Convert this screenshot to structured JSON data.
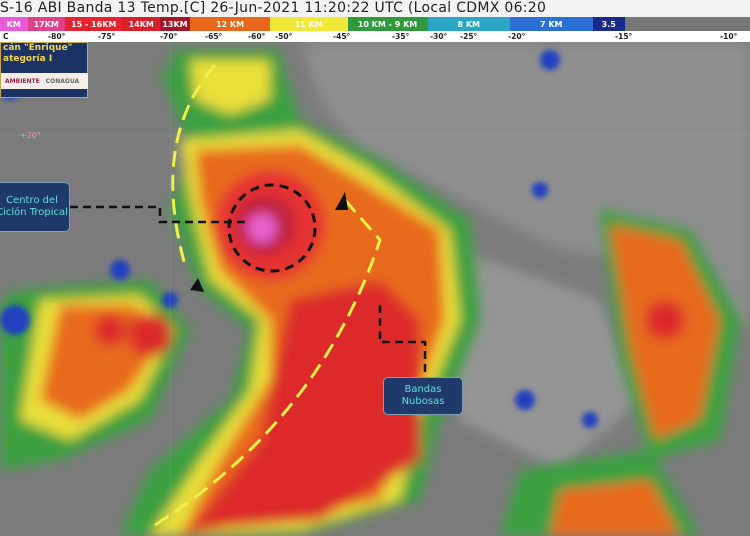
{
  "header": {
    "title": "S-16 ABI Banda 13 Temp.[C] 26-Jun-2021 11:20:22 UTC (Local CDMX  06:20"
  },
  "scale": {
    "segments": [
      {
        "label": "KM",
        "color": "#e85ad8"
      },
      {
        "label": "17KM",
        "color": "#e0408a"
      },
      {
        "label": "15 - 16KM",
        "color": "#e5232e"
      },
      {
        "label": "14KM",
        "color": "#d91f2a"
      },
      {
        "label": "13KM",
        "color": "#a2162a"
      },
      {
        "label": "12 KM",
        "color": "#e8651c"
      },
      {
        "label": "11 KM",
        "color": "#f1e838"
      },
      {
        "label": "10 KM -  9 KM",
        "color": "#2f9a3c"
      },
      {
        "label": "8 KM",
        "color": "#2aa6c2"
      },
      {
        "label": "7 KM",
        "color": "#2b6fd4"
      },
      {
        "label": "3.5",
        "color": "#1a2a8a"
      }
    ],
    "temps": [
      "C",
      "-80°",
      "-75°",
      "-70°",
      "-65°",
      "-60°",
      "-50°",
      "-45°",
      "-35°",
      "-30°",
      "-25°",
      "-20°",
      "-15°",
      "-10°"
    ]
  },
  "infobox": {
    "line1": "cán \"Enrique\"",
    "line2": "ategoría I",
    "logo1": "AMBIENTE",
    "logo2": "CONAGUA"
  },
  "map": {
    "latitude_label": "+20°"
  },
  "annotations": {
    "center": "Centro del Ciclón Tropical",
    "bands": "Bandas Nubosas"
  }
}
